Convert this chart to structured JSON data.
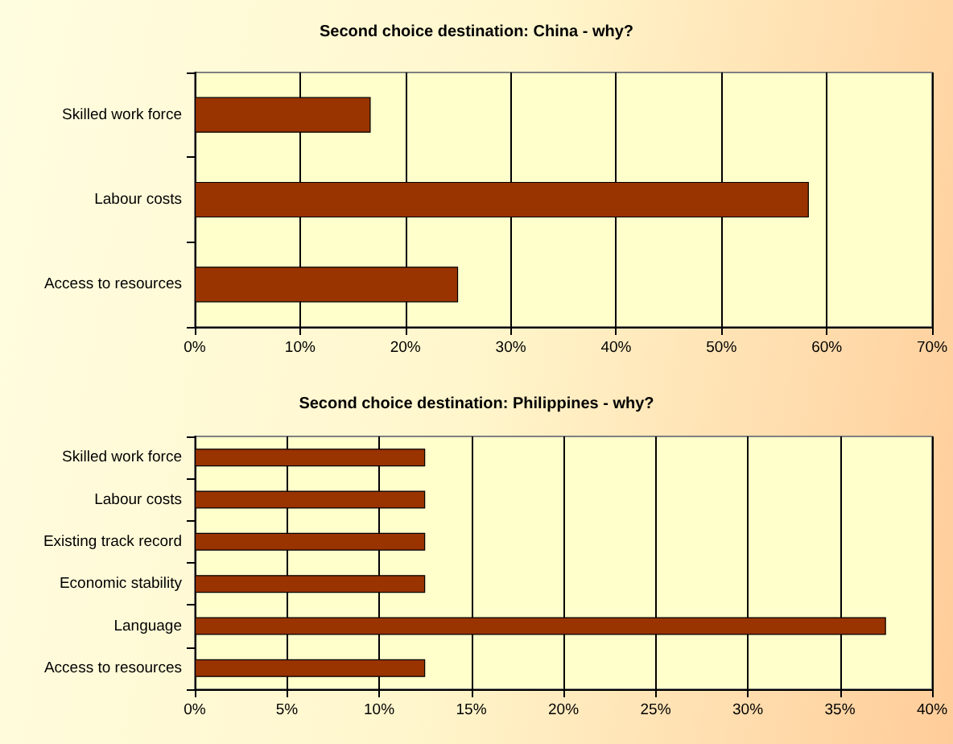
{
  "chart_data": [
    {
      "type": "bar",
      "orientation": "horizontal",
      "title": "Second choice destination: China - why?",
      "categories": [
        "Skilled work force",
        "Labour costs",
        "Access to resources"
      ],
      "values": [
        16.7,
        58.3,
        25
      ],
      "color": "#993300",
      "xlim": [
        0,
        70
      ],
      "xticks": [
        {
          "value": 0,
          "label": "0%"
        },
        {
          "value": 10,
          "label": "10%"
        },
        {
          "value": 20,
          "label": "20%"
        },
        {
          "value": 30,
          "label": "30%"
        },
        {
          "value": 40,
          "label": "40%"
        },
        {
          "value": 50,
          "label": "50%"
        },
        {
          "value": 60,
          "label": "60%"
        },
        {
          "value": 70,
          "label": "70%"
        }
      ],
      "grid": "x"
    },
    {
      "type": "bar",
      "orientation": "horizontal",
      "title": "Second choice destination: Philippines - why?",
      "categories": [
        "Skilled work force",
        "Labour costs",
        "Existing track record",
        "Economic stability",
        "Language",
        "Access to resources"
      ],
      "values": [
        12.5,
        12.5,
        12.5,
        12.5,
        37.5,
        12.5
      ],
      "color": "#993300",
      "xlim": [
        0,
        40
      ],
      "xticks": [
        {
          "value": 0,
          "label": "0%"
        },
        {
          "value": 5,
          "label": "5%"
        },
        {
          "value": 10,
          "label": "10%"
        },
        {
          "value": 15,
          "label": "15%"
        },
        {
          "value": 20,
          "label": "20%"
        },
        {
          "value": 25,
          "label": "25%"
        },
        {
          "value": 30,
          "label": "30%"
        },
        {
          "value": 35,
          "label": "35%"
        },
        {
          "value": 40,
          "label": "40%"
        }
      ],
      "grid": "x"
    }
  ]
}
